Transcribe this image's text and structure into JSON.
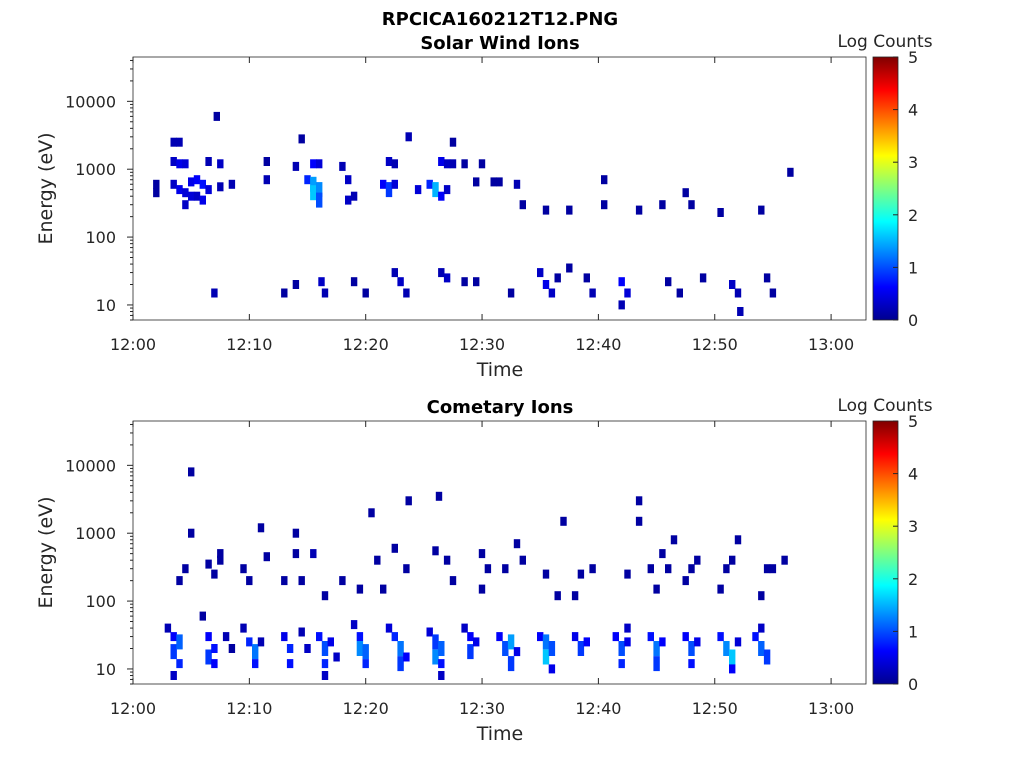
{
  "figure": {
    "title": "RPCICA160212T12.PNG"
  },
  "chart_data": [
    {
      "type": "heatmap",
      "title": "Solar Wind Ions",
      "xlabel": "Time",
      "ylabel": "Energy (eV)",
      "y_scale": "log",
      "ylim": [
        6,
        45000
      ],
      "xlim": [
        "12:00",
        "13:03"
      ],
      "x_ticks": [
        "12:00",
        "12:10",
        "12:20",
        "12:30",
        "12:40",
        "12:50",
        "13:00"
      ],
      "y_ticks": [
        "10",
        "100",
        "1000",
        "10000"
      ],
      "colorbar": {
        "label": "Log Counts",
        "range": [
          0,
          5
        ],
        "ticks": [
          "0",
          "1",
          "2",
          "3",
          "4",
          "5"
        ],
        "colormap": "jet"
      },
      "cells": [
        [
          2.0,
          600,
          0.1
        ],
        [
          2.0,
          450,
          0.1
        ],
        [
          3.5,
          2500,
          0.2
        ],
        [
          4.0,
          2500,
          0.2
        ],
        [
          3.5,
          1300,
          0.3
        ],
        [
          4.0,
          1200,
          0.5
        ],
        [
          4.5,
          1200,
          0.4
        ],
        [
          3.5,
          600,
          0.3
        ],
        [
          4.0,
          500,
          0.5
        ],
        [
          4.5,
          450,
          0.4
        ],
        [
          4.5,
          300,
          0.3
        ],
        [
          5.0,
          650,
          0.5
        ],
        [
          5.0,
          400,
          0.4
        ],
        [
          5.5,
          700,
          0.6
        ],
        [
          5.5,
          400,
          0.3
        ],
        [
          6.0,
          600,
          0.7
        ],
        [
          6.0,
          350,
          0.5
        ],
        [
          6.5,
          500,
          0.4
        ],
        [
          6.5,
          1300,
          0.2
        ],
        [
          7.5,
          1200,
          0.3
        ],
        [
          7.5,
          550,
          0.2
        ],
        [
          8.5,
          600,
          0.2
        ],
        [
          7.2,
          6000,
          0.1
        ],
        [
          7.0,
          15,
          0.2
        ],
        [
          11.5,
          1300,
          0.1
        ],
        [
          11.5,
          700,
          0.2
        ],
        [
          13.0,
          15,
          0.1
        ],
        [
          14.0,
          1100,
          0.2
        ],
        [
          14.0,
          20,
          0.1
        ],
        [
          14.5,
          2800,
          0.1
        ],
        [
          15.0,
          700,
          0.8
        ],
        [
          15.5,
          600,
          1.4
        ],
        [
          15.5,
          450,
          1.6
        ],
        [
          16.0,
          500,
          1.3
        ],
        [
          16.0,
          350,
          1.0
        ],
        [
          15.5,
          1200,
          0.6
        ],
        [
          16.0,
          1200,
          0.4
        ],
        [
          16.2,
          22,
          0.3
        ],
        [
          16.5,
          15,
          0.2
        ],
        [
          18.5,
          700,
          0.3
        ],
        [
          18.5,
          350,
          0.3
        ],
        [
          19.0,
          400,
          0.2
        ],
        [
          18.0,
          1100,
          0.2
        ],
        [
          19.0,
          22,
          0.1
        ],
        [
          20.0,
          15,
          0.1
        ],
        [
          21.5,
          600,
          0.6
        ],
        [
          22.0,
          500,
          0.9
        ],
        [
          22.0,
          1300,
          0.3
        ],
        [
          22.5,
          600,
          0.4
        ],
        [
          22.5,
          1200,
          0.2
        ],
        [
          22.5,
          30,
          0.2
        ],
        [
          23.0,
          22,
          0.3
        ],
        [
          23.5,
          15,
          0.2
        ],
        [
          23.7,
          3000,
          0.2
        ],
        [
          24.5,
          500,
          0.4
        ],
        [
          25.5,
          600,
          0.8
        ],
        [
          26.0,
          500,
          1.5
        ],
        [
          26.5,
          1300,
          0.5
        ],
        [
          26.5,
          400,
          0.6
        ],
        [
          27.0,
          1200,
          0.3
        ],
        [
          27.0,
          500,
          0.3
        ],
        [
          27.5,
          1200,
          0.2
        ],
        [
          26.5,
          30,
          0.2
        ],
        [
          27.0,
          25,
          0.3
        ],
        [
          28.5,
          22,
          0.1
        ],
        [
          29.5,
          22,
          0.1
        ],
        [
          27.5,
          2500,
          0.1
        ],
        [
          28.5,
          1200,
          0.1
        ],
        [
          29.5,
          650,
          0.1
        ],
        [
          30.0,
          1200,
          0.1
        ],
        [
          31.0,
          650,
          0.1
        ],
        [
          31.5,
          650,
          0.1
        ],
        [
          32.5,
          15,
          0.1
        ],
        [
          33.0,
          600,
          0.2
        ],
        [
          33.5,
          300,
          0.1
        ],
        [
          35.0,
          30,
          0.3
        ],
        [
          35.5,
          20,
          0.5
        ],
        [
          36.0,
          15,
          0.3
        ],
        [
          35.5,
          250,
          0.1
        ],
        [
          36.5,
          25,
          0.1
        ],
        [
          37.5,
          35,
          0.1
        ],
        [
          37.5,
          250,
          0.1
        ],
        [
          39.0,
          25,
          0.1
        ],
        [
          39.5,
          15,
          0.2
        ],
        [
          40.5,
          700,
          0.1
        ],
        [
          40.5,
          300,
          0.1
        ],
        [
          42.0,
          22,
          0.6
        ],
        [
          42.5,
          15,
          0.4
        ],
        [
          42.0,
          10,
          0.2
        ],
        [
          43.5,
          250,
          0.1
        ],
        [
          45.5,
          300,
          0.1
        ],
        [
          46.0,
          22,
          0.1
        ],
        [
          47.0,
          15,
          0.1
        ],
        [
          47.5,
          450,
          0.1
        ],
        [
          48.0,
          300,
          0.1
        ],
        [
          49.0,
          25,
          0.1
        ],
        [
          50.5,
          230,
          0.1
        ],
        [
          51.5,
          20,
          0.3
        ],
        [
          52.0,
          15,
          0.2
        ],
        [
          52.2,
          8,
          0.2
        ],
        [
          54.0,
          250,
          0.1
        ],
        [
          54.5,
          25,
          0.1
        ],
        [
          55.0,
          15,
          0.1
        ],
        [
          56.5,
          900,
          0.1
        ]
      ]
    },
    {
      "type": "heatmap",
      "title": "Cometary Ions",
      "xlabel": "Time",
      "ylabel": "Energy (eV)",
      "y_scale": "log",
      "ylim": [
        6,
        45000
      ],
      "xlim": [
        "12:00",
        "13:03"
      ],
      "x_ticks": [
        "12:00",
        "12:10",
        "12:20",
        "12:30",
        "12:40",
        "12:50",
        "13:00"
      ],
      "y_ticks": [
        "10",
        "100",
        "1000",
        "10000"
      ],
      "colorbar": {
        "label": "Log Counts",
        "range": [
          0,
          5
        ],
        "ticks": [
          "0",
          "1",
          "2",
          "3",
          "4",
          "5"
        ],
        "colormap": "jet"
      },
      "cells": [
        [
          3.0,
          40,
          0.2
        ],
        [
          3.5,
          30,
          0.6
        ],
        [
          3.5,
          18,
          0.9
        ],
        [
          4.0,
          25,
          1.1
        ],
        [
          4.0,
          12,
          0.8
        ],
        [
          3.5,
          8,
          0.3
        ],
        [
          4.0,
          200,
          0.1
        ],
        [
          4.5,
          300,
          0.1
        ],
        [
          5.0,
          1000,
          0.1
        ],
        [
          5.0,
          8000,
          0.1
        ],
        [
          6.0,
          60,
          0.1
        ],
        [
          6.5,
          30,
          0.6
        ],
        [
          6.5,
          15,
          0.9
        ],
        [
          7.0,
          20,
          0.7
        ],
        [
          7.0,
          12,
          0.6
        ],
        [
          6.5,
          350,
          0.1
        ],
        [
          7.0,
          250,
          0.1
        ],
        [
          7.5,
          400,
          0.1
        ],
        [
          7.5,
          500,
          0.1
        ],
        [
          8.0,
          30,
          0.2
        ],
        [
          8.5,
          20,
          0.1
        ],
        [
          9.5,
          300,
          0.1
        ],
        [
          10.0,
          200,
          0.1
        ],
        [
          9.5,
          40,
          0.2
        ],
        [
          10.0,
          25,
          0.8
        ],
        [
          10.5,
          18,
          1.2
        ],
        [
          10.5,
          12,
          0.7
        ],
        [
          11.0,
          25,
          0.2
        ],
        [
          11.5,
          450,
          0.1
        ],
        [
          11.0,
          1200,
          0.1
        ],
        [
          13.0,
          30,
          0.5
        ],
        [
          13.5,
          20,
          0.8
        ],
        [
          13.5,
          12,
          0.7
        ],
        [
          13.0,
          200,
          0.1
        ],
        [
          14.5,
          200,
          0.1
        ],
        [
          14.0,
          500,
          0.1
        ],
        [
          14.0,
          1000,
          0.1
        ],
        [
          14.5,
          35,
          0.2
        ],
        [
          15.0,
          20,
          0.3
        ],
        [
          15.5,
          500,
          0.2
        ],
        [
          16.0,
          30,
          0.7
        ],
        [
          16.5,
          20,
          1.0
        ],
        [
          16.5,
          12,
          0.8
        ],
        [
          16.5,
          8,
          0.3
        ],
        [
          17.0,
          25,
          0.5
        ],
        [
          17.5,
          15,
          0.3
        ],
        [
          16.5,
          120,
          0.1
        ],
        [
          18.0,
          200,
          0.1
        ],
        [
          19.0,
          45,
          0.3
        ],
        [
          19.5,
          30,
          0.7
        ],
        [
          19.5,
          20,
          1.3
        ],
        [
          20.0,
          18,
          1.1
        ],
        [
          20.0,
          12,
          0.8
        ],
        [
          19.5,
          150,
          0.1
        ],
        [
          20.5,
          2000,
          0.1
        ],
        [
          21.0,
          400,
          0.1
        ],
        [
          21.5,
          150,
          0.1
        ],
        [
          22.0,
          40,
          0.4
        ],
        [
          22.5,
          30,
          0.8
        ],
        [
          23.0,
          20,
          1.2
        ],
        [
          23.0,
          12,
          0.9
        ],
        [
          23.5,
          15,
          0.6
        ],
        [
          22.5,
          600,
          0.1
        ],
        [
          23.5,
          300,
          0.1
        ],
        [
          23.7,
          3000,
          0.1
        ],
        [
          25.5,
          35,
          0.4
        ],
        [
          26.0,
          25,
          0.9
        ],
        [
          26.0,
          15,
          1.3
        ],
        [
          26.5,
          20,
          1.1
        ],
        [
          26.5,
          12,
          0.7
        ],
        [
          26.5,
          8,
          0.3
        ],
        [
          26.0,
          550,
          0.1
        ],
        [
          27.0,
          400,
          0.1
        ],
        [
          27.5,
          200,
          0.1
        ],
        [
          26.3,
          3500,
          0.1
        ],
        [
          28.5,
          40,
          0.3
        ],
        [
          29.0,
          30,
          0.6
        ],
        [
          29.0,
          18,
          0.9
        ],
        [
          29.5,
          25,
          0.5
        ],
        [
          30.0,
          500,
          0.1
        ],
        [
          30.5,
          300,
          0.1
        ],
        [
          30.0,
          150,
          0.1
        ],
        [
          31.5,
          30,
          0.6
        ],
        [
          32.0,
          20,
          1.0
        ],
        [
          32.5,
          25,
          1.4
        ],
        [
          32.5,
          12,
          0.9
        ],
        [
          33.0,
          18,
          0.5
        ],
        [
          32.0,
          300,
          0.1
        ],
        [
          33.0,
          700,
          0.1
        ],
        [
          33.5,
          400,
          0.1
        ],
        [
          35.0,
          30,
          0.6
        ],
        [
          35.5,
          25,
          1.2
        ],
        [
          35.5,
          15,
          1.6
        ],
        [
          36.0,
          20,
          1.0
        ],
        [
          36.0,
          10,
          0.5
        ],
        [
          35.5,
          250,
          0.1
        ],
        [
          36.5,
          120,
          0.1
        ],
        [
          37.0,
          1500,
          0.1
        ],
        [
          38.0,
          30,
          0.5
        ],
        [
          38.5,
          20,
          0.9
        ],
        [
          39.0,
          25,
          0.6
        ],
        [
          38.5,
          250,
          0.1
        ],
        [
          38.0,
          120,
          0.1
        ],
        [
          39.5,
          300,
          0.1
        ],
        [
          41.5,
          30,
          0.6
        ],
        [
          42.0,
          20,
          1.0
        ],
        [
          42.0,
          12,
          0.8
        ],
        [
          42.5,
          25,
          0.5
        ],
        [
          42.5,
          40,
          0.3
        ],
        [
          42.5,
          250,
          0.1
        ],
        [
          43.5,
          3000,
          0.1
        ],
        [
          43.5,
          1500,
          0.1
        ],
        [
          44.5,
          30,
          0.7
        ],
        [
          45.0,
          20,
          1.2
        ],
        [
          45.0,
          12,
          0.9
        ],
        [
          45.5,
          25,
          0.6
        ],
        [
          44.5,
          300,
          0.1
        ],
        [
          45.0,
          150,
          0.1
        ],
        [
          45.5,
          500,
          0.1
        ],
        [
          46.0,
          300,
          0.1
        ],
        [
          46.5,
          800,
          0.1
        ],
        [
          47.5,
          30,
          0.6
        ],
        [
          48.0,
          20,
          1.0
        ],
        [
          48.0,
          12,
          0.7
        ],
        [
          48.5,
          25,
          0.5
        ],
        [
          47.5,
          200,
          0.1
        ],
        [
          48.0,
          300,
          0.1
        ],
        [
          48.5,
          400,
          0.1
        ],
        [
          50.5,
          30,
          0.7
        ],
        [
          51.0,
          20,
          1.3
        ],
        [
          51.5,
          15,
          1.6
        ],
        [
          51.5,
          10,
          0.6
        ],
        [
          52.0,
          25,
          0.4
        ],
        [
          50.5,
          150,
          0.1
        ],
        [
          51.0,
          300,
          0.1
        ],
        [
          51.5,
          400,
          0.1
        ],
        [
          52.0,
          800,
          0.1
        ],
        [
          53.5,
          30,
          0.7
        ],
        [
          54.0,
          20,
          1.1
        ],
        [
          54.5,
          15,
          0.9
        ],
        [
          54.0,
          40,
          0.3
        ],
        [
          54.0,
          120,
          0.1
        ],
        [
          54.5,
          300,
          0.1
        ],
        [
          55.0,
          300,
          0.1
        ],
        [
          56.0,
          400,
          0.1
        ]
      ]
    }
  ]
}
